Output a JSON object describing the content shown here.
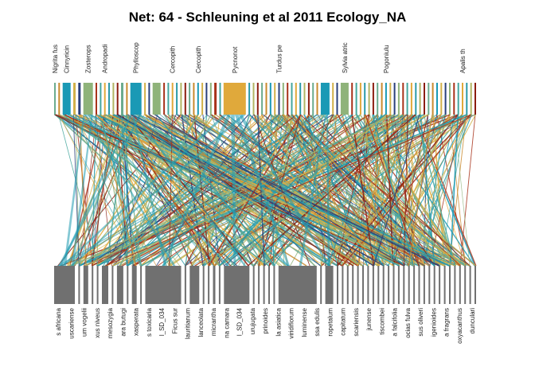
{
  "title": "Net: 64 - Schleuning et al 2011 Ecology_NA",
  "colors": {
    "lower_boxes": "#707070",
    "palette": [
      "#2b9aa8",
      "#1a99b5",
      "#45a79e",
      "#6cab8e",
      "#8fb37a",
      "#b2b563",
      "#d2b14a",
      "#e0a93b",
      "#c98a2e",
      "#a8331b",
      "#8b1d10",
      "#2a3f7a"
    ]
  },
  "higher_species": [
    "Nigrita fus",
    "Cinnyricin",
    "Zosterops",
    "Andropadi",
    "Phylloscop",
    "Cercopith",
    "Cercopith",
    "Pycnonot",
    "Turdus pe",
    "Sylvia atric",
    "Pogoniulu",
    "Apalis th"
  ],
  "lower_species": [
    "s africana",
    "uscariense",
    "um vogelii",
    "xus niveus",
    "mesozygia",
    "ara butugi",
    "xasperata",
    "s toxicaria",
    "l_SD_034",
    "Ficus sur",
    "lauritianum",
    "lanceolata",
    "micrantha",
    "na camara",
    "l_SD_034",
    "urujugata",
    "prinoides",
    "la asiatica",
    "viridiflorum",
    "luminense",
    "ssa edulis",
    "ropetalum",
    "capitatum",
    "scariensis",
    "junense",
    "tiscombei",
    "a falcifolia",
    "ocias fulva",
    "sus oliveri",
    "igenioides",
    "a fragrans",
    "oxyacanthus",
    "dunculari"
  ]
}
